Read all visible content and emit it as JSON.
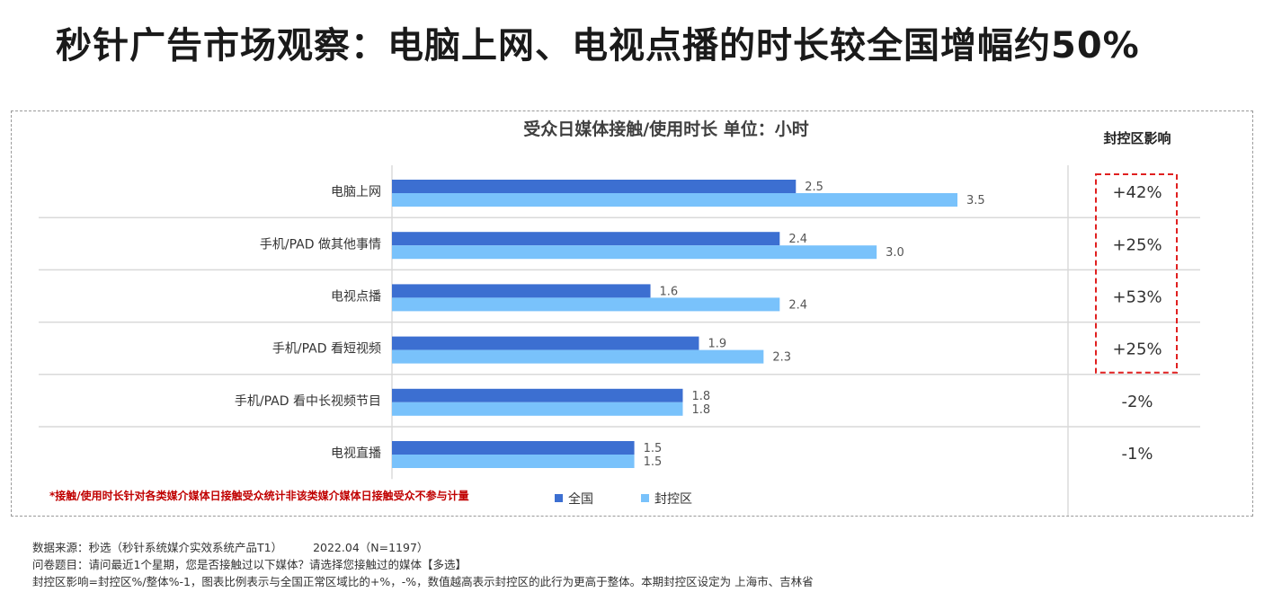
{
  "page_title": "秒针广告市场观察：电脑上网、电视点播的时长较全国增幅约50%",
  "chart_data": {
    "type": "bar",
    "orientation": "horizontal",
    "title": "受众日媒体接触/使用时长 单位：小时",
    "categories": [
      "电脑上网",
      "手机/PAD 做其他事情",
      "电视点播",
      "手机/PAD 看短视频",
      "手机/PAD 看中长视频节目",
      "电视直播"
    ],
    "series": [
      {
        "name": "全国",
        "color": "#3c6fd1",
        "values": [
          2.5,
          2.4,
          1.6,
          1.9,
          1.8,
          1.5
        ]
      },
      {
        "name": "封控区",
        "color": "#79c2fb",
        "values": [
          3.5,
          3.0,
          2.4,
          2.3,
          1.8,
          1.5
        ]
      }
    ],
    "value_labels": [
      [
        "2.5",
        "2.4",
        "1.6",
        "1.9",
        "1.8",
        "1.5"
      ],
      [
        "3.5",
        "3.0",
        "2.4",
        "2.3",
        "1.8",
        "1.5"
      ]
    ],
    "xlim": [
      0,
      3.5
    ],
    "legend_position": "bottom",
    "impact_column": {
      "header": "封控区影响",
      "values": [
        "+42%",
        "+25%",
        "+53%",
        "+25%",
        "-2%",
        "-1%"
      ],
      "highlight_color": "#e02020",
      "highlighted_rows": [
        0,
        1,
        2,
        3
      ]
    },
    "note": "*接触/使用时长针对各类媒介媒体日接触受众统计非该类媒介媒体日接触受众不参与计量",
    "note_color": "#c00000"
  },
  "footnote": {
    "source": "数据来源：秒选（秒针系统媒介实效系统产品T1）",
    "date_sample": "2022.04（N=1197）",
    "question": "问卷题目：请问最近1个星期，您是否接触过以下媒体？请选择您接触过的媒体【多选】",
    "definition": "封控区影响=封控区%/整体%-1，图表比例表示与全国正常区域比的+%，-%，数值越高表示封控区的此行为更高于整体。本期封控区设定为 上海市、吉林省"
  }
}
